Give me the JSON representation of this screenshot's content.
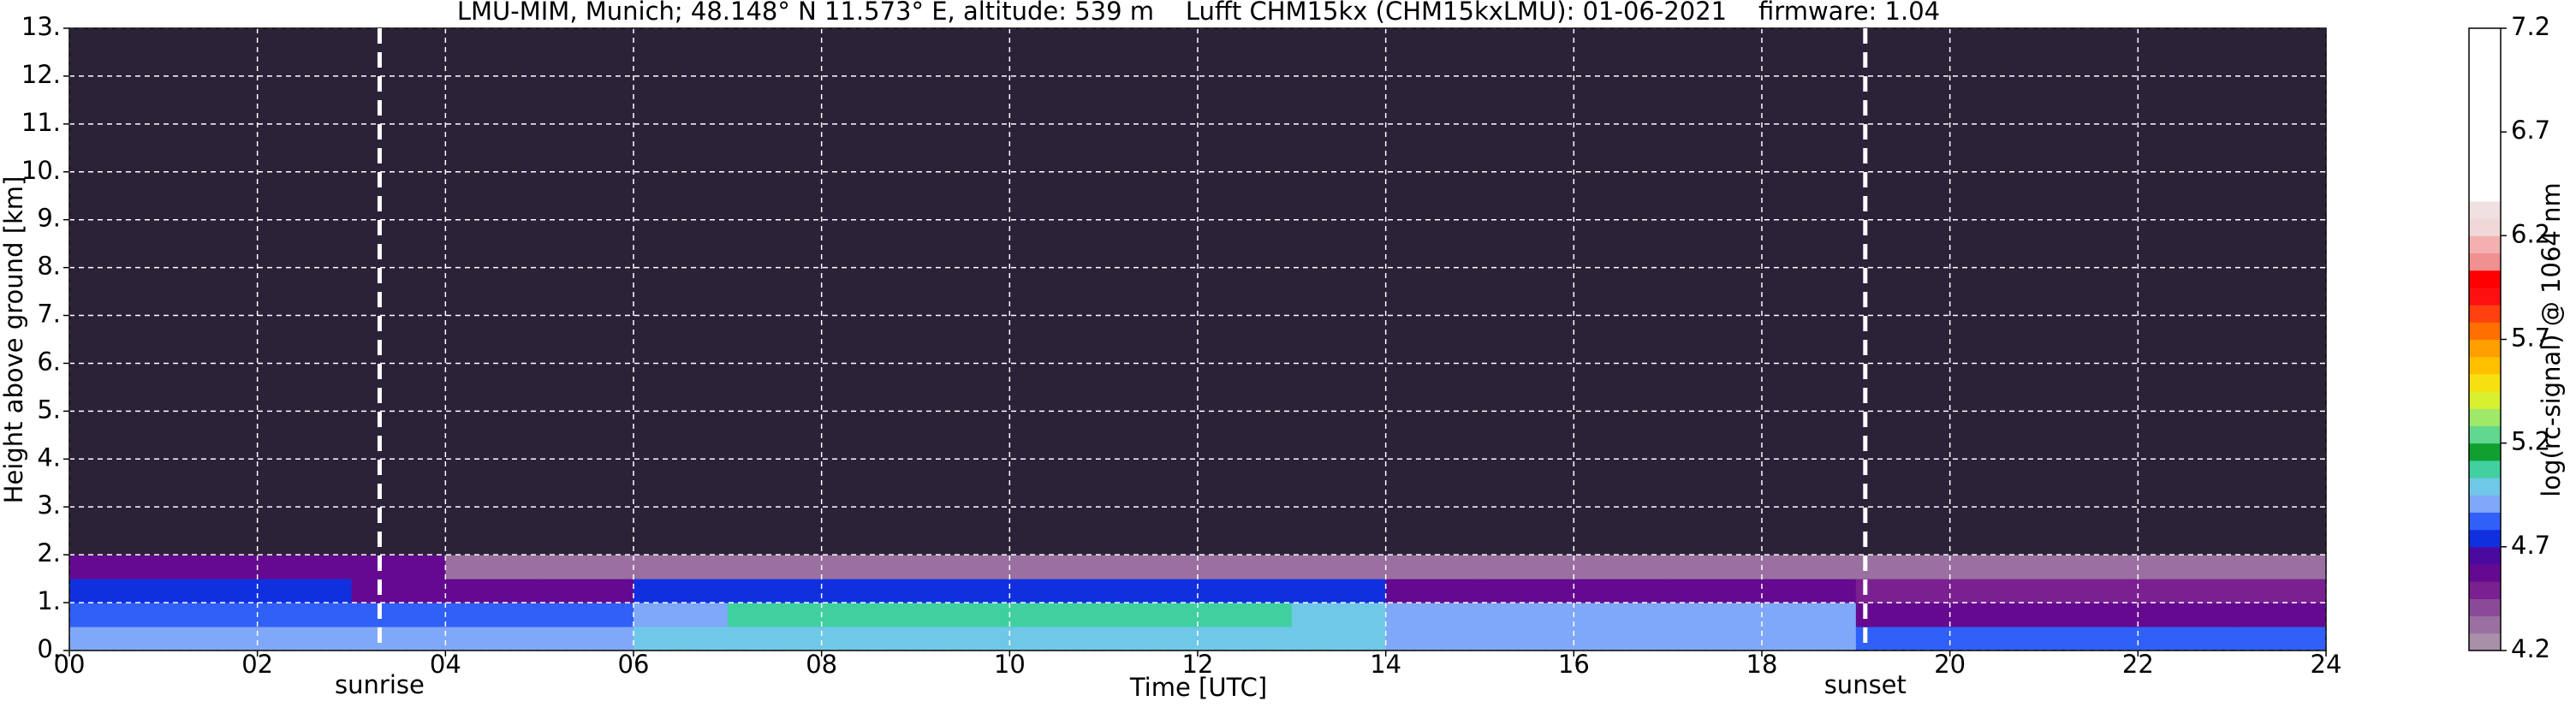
{
  "chart_data": {
    "type": "heatmap",
    "title": "LMU-MIM, Munich; 48.148° N 11.573° E, altitude: 539 m    Lufft CHM15kx (CHM15kxLMU): 01-06-2021    firmware: 1.04",
    "x_label": "Time [UTC]",
    "y_label": "Height above ground [km]",
    "colorbar_label": "log(rc-signal) @ 1064 nm",
    "x_edges": [
      0,
      1,
      2,
      3,
      4,
      5,
      6,
      7,
      8,
      9,
      10,
      11,
      12,
      13,
      14,
      15,
      16,
      17,
      18,
      19,
      20,
      21,
      22,
      23,
      24
    ],
    "y_edges": [
      0,
      0.5,
      1.0,
      1.5,
      2.0,
      13.0
    ],
    "z": [
      [
        4.9,
        4.9,
        4.9,
        4.9,
        4.9,
        4.9,
        4.95,
        4.95,
        5.0,
        5.0,
        5.0,
        5.0,
        5.0,
        4.95,
        4.9,
        4.9,
        4.9,
        4.9,
        4.9,
        4.8,
        4.8,
        4.8,
        4.8,
        4.8
      ],
      [
        4.85,
        4.85,
        4.85,
        4.85,
        4.85,
        4.85,
        4.9,
        5.05,
        5.1,
        5.1,
        5.1,
        5.1,
        5.1,
        5.0,
        4.88,
        4.88,
        4.88,
        4.88,
        4.88,
        4.6,
        4.6,
        4.6,
        4.6,
        4.6
      ],
      [
        4.75,
        4.75,
        4.75,
        4.6,
        4.6,
        4.6,
        4.75,
        4.75,
        4.75,
        4.75,
        4.75,
        4.75,
        4.75,
        4.75,
        4.6,
        4.6,
        4.6,
        4.6,
        4.6,
        4.45,
        4.45,
        4.45,
        4.45,
        4.45
      ],
      [
        4.55,
        4.55,
        4.55,
        4.55,
        4.3,
        4.3,
        4.3,
        4.3,
        4.3,
        4.3,
        4.3,
        4.3,
        4.3,
        4.3,
        4.3,
        4.3,
        4.3,
        4.3,
        4.3,
        4.35,
        4.35,
        4.35,
        4.35,
        4.35
      ],
      [
        4.1,
        4.1,
        4.1,
        4.1,
        4.1,
        4.1,
        4.1,
        4.1,
        4.1,
        4.1,
        4.1,
        4.1,
        4.1,
        4.1,
        4.1,
        4.1,
        4.1,
        4.1,
        4.1,
        4.1,
        4.1,
        4.1,
        4.1,
        4.1
      ]
    ],
    "xlim": [
      0,
      24
    ],
    "ylim": [
      0,
      13
    ],
    "clim": [
      4.2,
      7.2
    ],
    "xticks": [
      {
        "value": 0,
        "label": "00"
      },
      {
        "value": 2,
        "label": "02"
      },
      {
        "value": 4,
        "label": "04"
      },
      {
        "value": 6,
        "label": "06"
      },
      {
        "value": 8,
        "label": "08"
      },
      10,
      12,
      14,
      16,
      18,
      20,
      22,
      24
    ],
    "yticks": [
      {
        "value": 0,
        "label": "0."
      },
      {
        "value": 1,
        "label": "1."
      },
      {
        "value": 2,
        "label": "2."
      },
      {
        "value": 3,
        "label": "3."
      },
      {
        "value": 4,
        "label": "4."
      },
      {
        "value": 5,
        "label": "5."
      },
      {
        "value": 6,
        "label": "6."
      },
      {
        "value": 7,
        "label": "7."
      },
      {
        "value": 8,
        "label": "8."
      },
      {
        "value": 9,
        "label": "9."
      },
      {
        "value": 10,
        "label": "10."
      },
      {
        "value": 11,
        "label": "11."
      },
      {
        "value": 12,
        "label": "12."
      },
      {
        "value": 13,
        "label": "13."
      }
    ],
    "cticks": [
      4.2,
      4.7,
      5.2,
      5.7,
      6.2,
      6.7,
      7.2
    ],
    "colormap": [
      "#a890a8",
      "#9a70a0",
      "#8a4a98",
      "#7a2090",
      "#650a90",
      "#4a0aa0",
      "#1030e0",
      "#3060f8",
      "#80a8f8",
      "#70c8e8",
      "#40d0a0",
      "#10a030",
      "#60d890",
      "#a0e868",
      "#d8f030",
      "#f8e010",
      "#ffc000",
      "#ffa000",
      "#ff7000",
      "#ff4010",
      "#ff1010",
      "#ff0000",
      "#f09090",
      "#f4b0b0",
      "#f0d8d8",
      "#f0e0e0",
      "#ffffff",
      "#ffffff",
      "#ffffff",
      "#ffffff",
      "#ffffff",
      "#ffffff",
      "#ffffff",
      "#ffffff",
      "#ffffff",
      "#ffffff"
    ],
    "under_color": "#2b2238",
    "grid": true,
    "annotations": [
      {
        "x": 3.3,
        "label": "sunrise"
      },
      {
        "x": 19.1,
        "label": "sunset"
      }
    ]
  }
}
